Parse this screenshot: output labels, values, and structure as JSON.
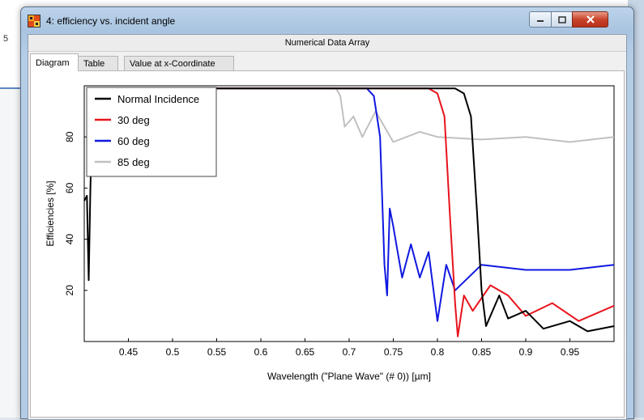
{
  "background": {
    "left_number": "5"
  },
  "window": {
    "title": "4: efficiency vs. incident angle",
    "subheader": "Numerical Data Array",
    "tabs": [
      "Diagram",
      "Table",
      "Value at x-Coordinate"
    ],
    "active_tab": "Diagram"
  },
  "colors": {
    "normal": "#000000",
    "deg30": "#e8141c",
    "deg60": "#1018e0",
    "deg85": "#c0c0c0"
  },
  "chart_data": {
    "type": "line",
    "xlabel": "Wavelength (\"Plane Wave\" (# 0)) [µm]",
    "ylabel": "Efficiencies  [%]",
    "xlim": [
      0.4,
      1.0
    ],
    "ylim": [
      0,
      100
    ],
    "xticks": [
      "0.45",
      "0.5",
      "0.55",
      "0.6",
      "0.65",
      "0.7",
      "0.75",
      "0.8",
      "0.85",
      "0.9",
      "0.95"
    ],
    "yticks": [
      "20",
      "40",
      "60",
      "80"
    ],
    "legend_position": "top-left",
    "series": [
      {
        "name": "Normal Incidence",
        "color": "#000000",
        "points": [
          [
            0.4,
            55
          ],
          [
            0.403,
            57
          ],
          [
            0.405,
            24
          ],
          [
            0.407,
            60
          ],
          [
            0.41,
            99
          ],
          [
            0.45,
            99
          ],
          [
            0.5,
            99
          ],
          [
            0.55,
            99
          ],
          [
            0.6,
            99
          ],
          [
            0.65,
            99
          ],
          [
            0.7,
            99
          ],
          [
            0.75,
            99
          ],
          [
            0.8,
            99
          ],
          [
            0.82,
            99
          ],
          [
            0.83,
            97
          ],
          [
            0.838,
            88
          ],
          [
            0.845,
            50
          ],
          [
            0.85,
            20
          ],
          [
            0.855,
            6
          ],
          [
            0.86,
            10
          ],
          [
            0.87,
            18
          ],
          [
            0.88,
            9
          ],
          [
            0.9,
            12
          ],
          [
            0.92,
            5
          ],
          [
            0.95,
            8
          ],
          [
            0.97,
            4
          ],
          [
            1.0,
            6
          ]
        ]
      },
      {
        "name": "30 deg",
        "color": "#e8141c",
        "points": [
          [
            0.41,
            99
          ],
          [
            0.5,
            99
          ],
          [
            0.6,
            99
          ],
          [
            0.7,
            99
          ],
          [
            0.75,
            99
          ],
          [
            0.79,
            99
          ],
          [
            0.8,
            97
          ],
          [
            0.808,
            88
          ],
          [
            0.814,
            50
          ],
          [
            0.82,
            15
          ],
          [
            0.823,
            2
          ],
          [
            0.83,
            18
          ],
          [
            0.84,
            12
          ],
          [
            0.86,
            22
          ],
          [
            0.88,
            18
          ],
          [
            0.9,
            10
          ],
          [
            0.93,
            15
          ],
          [
            0.96,
            8
          ],
          [
            1.0,
            14
          ]
        ]
      },
      {
        "name": "60 deg",
        "color": "#1018e0",
        "points": [
          [
            0.41,
            99
          ],
          [
            0.5,
            99
          ],
          [
            0.6,
            99
          ],
          [
            0.7,
            99
          ],
          [
            0.72,
            99
          ],
          [
            0.728,
            96
          ],
          [
            0.735,
            80
          ],
          [
            0.74,
            30
          ],
          [
            0.743,
            18
          ],
          [
            0.746,
            52
          ],
          [
            0.75,
            45
          ],
          [
            0.755,
            35
          ],
          [
            0.76,
            25
          ],
          [
            0.77,
            38
          ],
          [
            0.78,
            25
          ],
          [
            0.79,
            35
          ],
          [
            0.8,
            8
          ],
          [
            0.81,
            30
          ],
          [
            0.82,
            20
          ],
          [
            0.85,
            30
          ],
          [
            0.9,
            28
          ],
          [
            0.95,
            28
          ],
          [
            1.0,
            30
          ]
        ]
      },
      {
        "name": "85 deg",
        "color": "#c0c0c0",
        "points": [
          [
            0.41,
            99
          ],
          [
            0.5,
            99
          ],
          [
            0.6,
            99
          ],
          [
            0.65,
            99
          ],
          [
            0.685,
            99
          ],
          [
            0.69,
            96
          ],
          [
            0.695,
            84
          ],
          [
            0.705,
            88
          ],
          [
            0.715,
            80
          ],
          [
            0.73,
            90
          ],
          [
            0.75,
            78
          ],
          [
            0.78,
            82
          ],
          [
            0.8,
            80
          ],
          [
            0.85,
            79
          ],
          [
            0.9,
            80
          ],
          [
            0.95,
            78
          ],
          [
            1.0,
            80
          ]
        ]
      }
    ]
  }
}
